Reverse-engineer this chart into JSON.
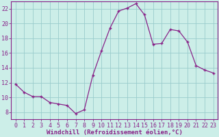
{
  "x": [
    0,
    1,
    2,
    3,
    4,
    5,
    6,
    7,
    8,
    9,
    10,
    11,
    12,
    13,
    14,
    15,
    16,
    17,
    18,
    19,
    20,
    21,
    22,
    23
  ],
  "y": [
    11.8,
    10.7,
    10.1,
    10.1,
    9.3,
    9.1,
    8.9,
    7.8,
    8.3,
    13.0,
    16.3,
    19.4,
    21.7,
    22.1,
    22.7,
    21.2,
    17.2,
    17.3,
    19.2,
    19.0,
    17.5,
    14.3,
    13.7,
    13.3
  ],
  "line_color": "#882288",
  "marker": "+",
  "bg_color": "#cceee8",
  "grid_color": "#99cccc",
  "axis_color": "#882288",
  "xlabel": "Windchill (Refroidissement éolien,°C)",
  "xlim": [
    -0.5,
    23.5
  ],
  "ylim": [
    7.0,
    23.0
  ],
  "yticks": [
    8,
    10,
    12,
    14,
    16,
    18,
    20,
    22
  ],
  "xticks": [
    0,
    1,
    2,
    3,
    4,
    5,
    6,
    7,
    8,
    9,
    10,
    11,
    12,
    13,
    14,
    15,
    16,
    17,
    18,
    19,
    20,
    21,
    22,
    23
  ],
  "label_fontsize": 6.5,
  "tick_fontsize": 6.0
}
